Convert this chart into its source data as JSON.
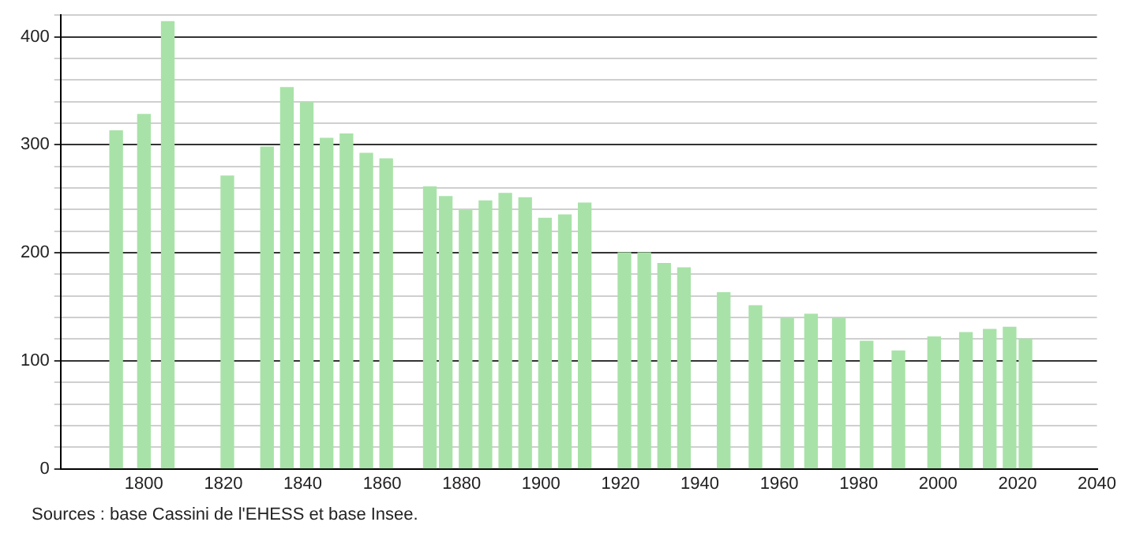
{
  "chart_data": {
    "type": "bar",
    "x": [
      1793,
      1800,
      1806,
      1821,
      1831,
      1836,
      1841,
      1846,
      1851,
      1856,
      1861,
      1872,
      1876,
      1881,
      1886,
      1891,
      1896,
      1901,
      1906,
      1911,
      1921,
      1926,
      1931,
      1936,
      1946,
      1954,
      1962,
      1968,
      1975,
      1982,
      1990,
      1999,
      2007,
      2013,
      2018,
      2022
    ],
    "values": [
      313,
      328,
      414,
      271,
      298,
      353,
      339,
      306,
      310,
      292,
      287,
      261,
      252,
      239,
      248,
      255,
      251,
      232,
      235,
      246,
      200,
      200,
      190,
      186,
      163,
      151,
      139,
      143,
      139,
      118,
      109,
      122,
      126,
      129,
      131,
      120
    ],
    "color": "#a8e2a8",
    "xlim": [
      1779,
      2040
    ],
    "xticks": [
      1800,
      1820,
      1840,
      1860,
      1880,
      1900,
      1920,
      1940,
      1960,
      1980,
      2000,
      2020,
      2040
    ],
    "ylim": [
      0,
      420
    ],
    "yticks": [
      0,
      {
        "value": 20,
        "label": null
      },
      {
        "value": 40,
        "label": null
      },
      {
        "value": 60,
        "label": null
      },
      {
        "value": 80,
        "label": null
      },
      100,
      {
        "value": 120,
        "label": null
      },
      {
        "value": 140,
        "label": null
      },
      {
        "value": 160,
        "label": null
      },
      {
        "value": 180,
        "label": null
      },
      200,
      {
        "value": 220,
        "label": null
      },
      {
        "value": 240,
        "label": null
      },
      {
        "value": 260,
        "label": null
      },
      {
        "value": 280,
        "label": null
      },
      300,
      {
        "value": 320,
        "label": null
      },
      {
        "value": 340,
        "label": null
      },
      {
        "value": 360,
        "label": null
      },
      {
        "value": 380,
        "label": null
      },
      400,
      {
        "value": 420,
        "label": null
      }
    ],
    "grid": "y",
    "annotations": [
      "Sources : base Cassini de l'EHESS et base Insee."
    ]
  }
}
